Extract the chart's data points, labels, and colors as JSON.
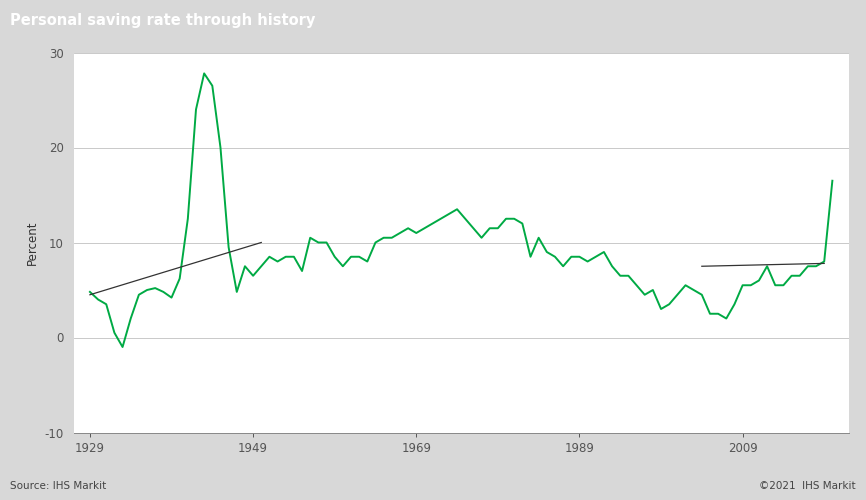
{
  "title": "Personal saving rate through history",
  "ylabel": "Percent",
  "source_left": "Source: IHS Markit",
  "source_right": "©2021  IHS Markit",
  "title_bg_color": "#737373",
  "title_text_color": "#ffffff",
  "plot_bg_color": "#ffffff",
  "outer_bg_color": "#d8d8d8",
  "line_color": "#00aa44",
  "trend_color": "#333333",
  "grid_color": "#c0c0c0",
  "ylim": [
    -10,
    30
  ],
  "yticks": [
    -10,
    0,
    10,
    20,
    30
  ],
  "xticks": [
    1929,
    1949,
    1969,
    1989,
    2009
  ],
  "years": [
    1929,
    1930,
    1931,
    1932,
    1933,
    1934,
    1935,
    1936,
    1937,
    1938,
    1939,
    1940,
    1941,
    1942,
    1943,
    1944,
    1945,
    1946,
    1947,
    1948,
    1949,
    1950,
    1951,
    1952,
    1953,
    1954,
    1955,
    1956,
    1957,
    1958,
    1959,
    1960,
    1961,
    1962,
    1963,
    1964,
    1965,
    1966,
    1967,
    1968,
    1969,
    1970,
    1971,
    1972,
    1973,
    1974,
    1975,
    1976,
    1977,
    1978,
    1979,
    1980,
    1981,
    1982,
    1983,
    1984,
    1985,
    1986,
    1987,
    1988,
    1989,
    1990,
    1991,
    1992,
    1993,
    1994,
    1995,
    1996,
    1997,
    1998,
    1999,
    2000,
    2001,
    2002,
    2003,
    2004,
    2005,
    2006,
    2007,
    2008,
    2009,
    2010,
    2011,
    2012,
    2013,
    2014,
    2015,
    2016,
    2017,
    2018,
    2019,
    2020
  ],
  "values": [
    4.8,
    4.0,
    3.5,
    0.5,
    -1.0,
    2.0,
    4.5,
    5.0,
    5.2,
    4.8,
    4.2,
    6.2,
    12.5,
    24.0,
    27.8,
    26.5,
    20.0,
    9.5,
    4.8,
    7.5,
    6.5,
    7.5,
    8.5,
    8.0,
    8.5,
    8.5,
    7.0,
    10.5,
    10.0,
    10.0,
    8.5,
    7.5,
    8.5,
    8.5,
    8.0,
    10.0,
    10.5,
    10.5,
    11.0,
    11.5,
    11.0,
    11.5,
    12.0,
    12.5,
    13.0,
    13.5,
    12.5,
    11.5,
    10.5,
    11.5,
    11.5,
    12.5,
    12.5,
    12.0,
    8.5,
    10.5,
    9.0,
    8.5,
    7.5,
    8.5,
    8.5,
    8.0,
    8.5,
    9.0,
    7.5,
    6.5,
    6.5,
    5.5,
    4.5,
    5.0,
    3.0,
    3.5,
    4.5,
    5.5,
    5.0,
    4.5,
    2.5,
    2.5,
    2.0,
    3.5,
    5.5,
    5.5,
    6.0,
    7.5,
    5.5,
    5.5,
    6.5,
    6.5,
    7.5,
    7.5,
    8.0,
    16.5
  ],
  "trend_x": [
    1929,
    1950
  ],
  "trend_y": [
    4.5,
    10.0
  ],
  "trend2_x": [
    2004,
    2019
  ],
  "trend2_y": [
    7.5,
    7.8
  ],
  "xlim": [
    1927,
    2022
  ]
}
